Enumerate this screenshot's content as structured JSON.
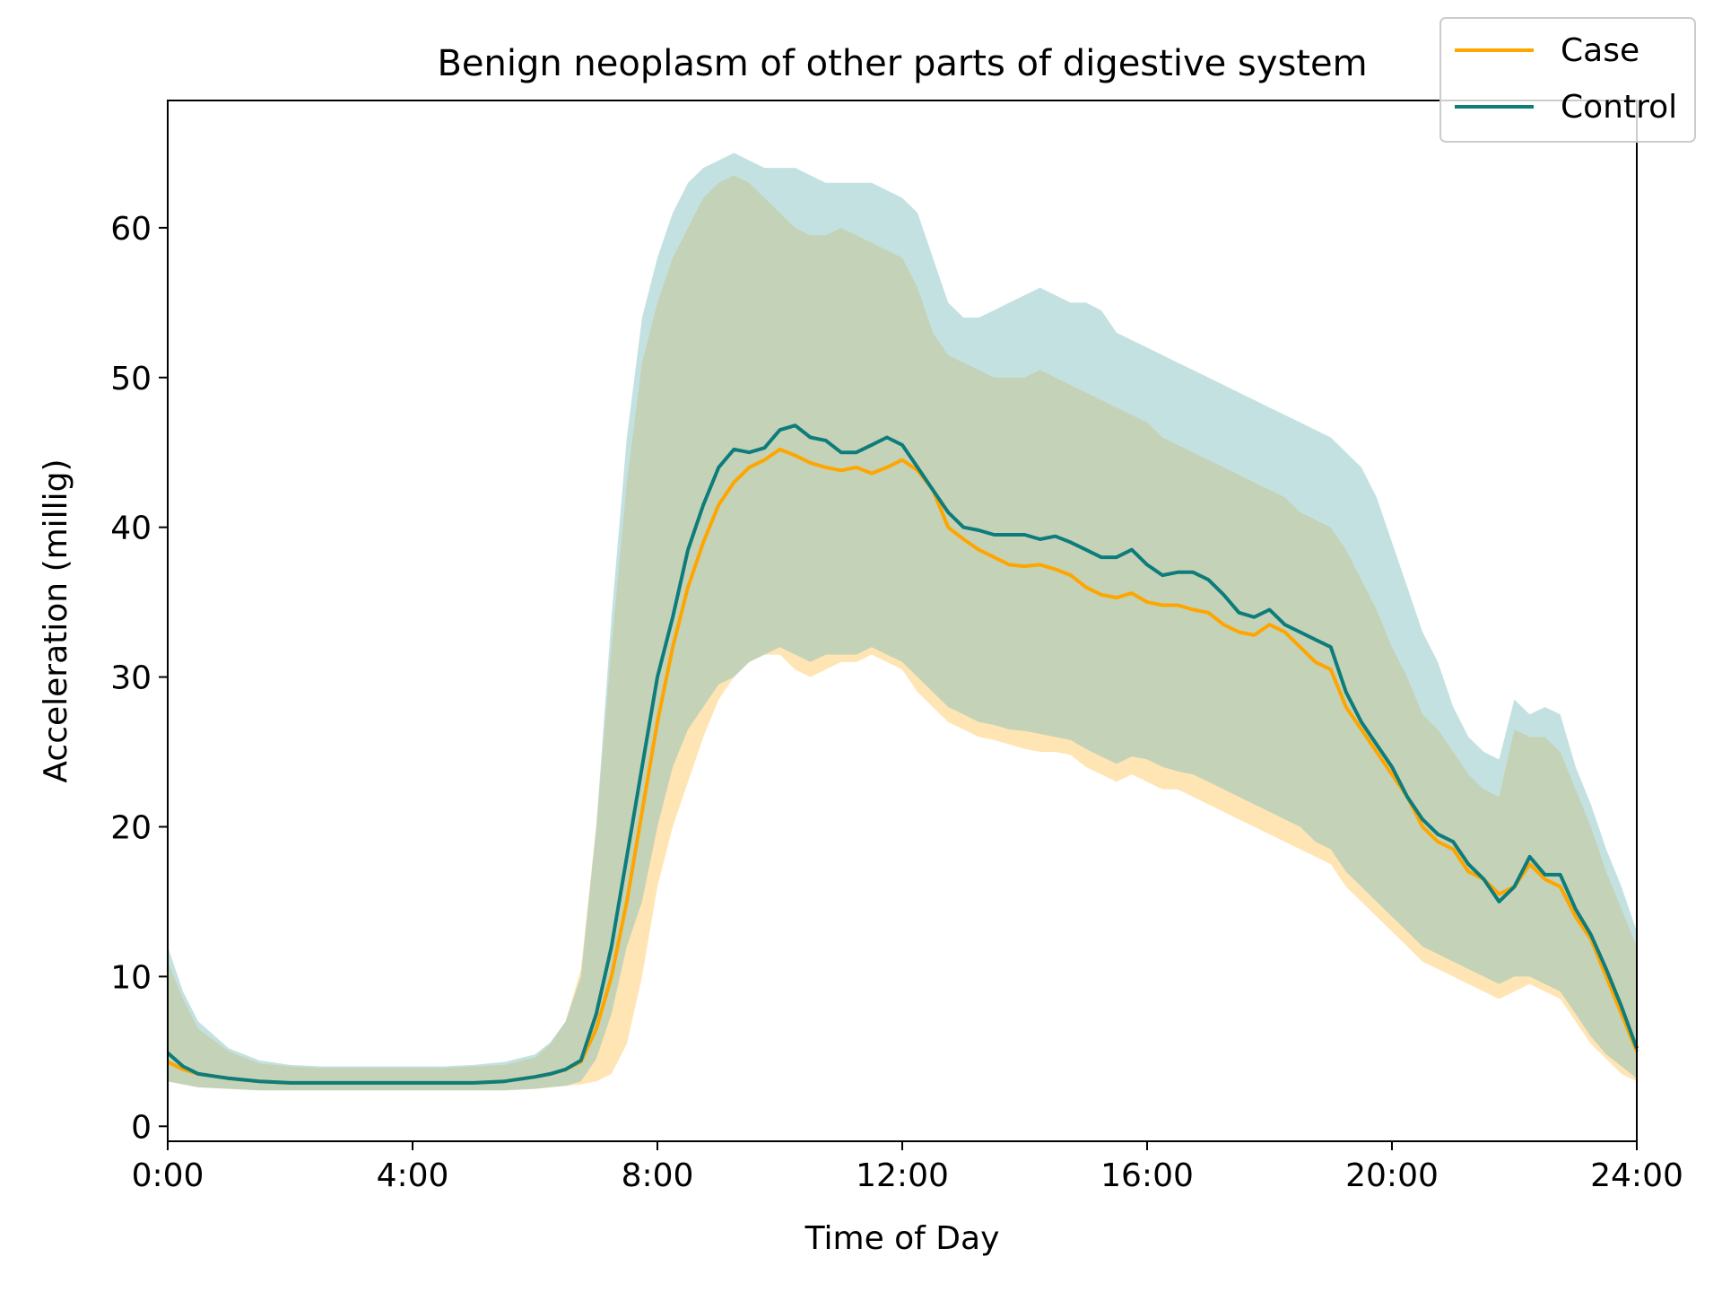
{
  "chart_data": {
    "type": "line",
    "title": "Benign neoplasm of other parts of digestive system",
    "xlabel": "Time of Day",
    "ylabel": "Acceleration (millig)",
    "xlim": [
      0,
      24
    ],
    "ylim": [
      -1,
      68.5
    ],
    "x_ticks": [
      0,
      4,
      8,
      12,
      16,
      20,
      24
    ],
    "x_tick_labels": [
      "0:00",
      "4:00",
      "8:00",
      "12:00",
      "16:00",
      "20:00",
      "24:00"
    ],
    "y_ticks": [
      0,
      10,
      20,
      30,
      40,
      50,
      60
    ],
    "y_tick_labels": [
      "0",
      "10",
      "20",
      "30",
      "40",
      "50",
      "60"
    ],
    "grid": false,
    "legend_position": "top-right",
    "x": [
      0,
      0.25,
      0.5,
      1,
      1.5,
      2,
      2.5,
      3,
      3.5,
      4,
      4.5,
      5,
      5.5,
      6,
      6.25,
      6.5,
      6.75,
      7,
      7.25,
      7.5,
      7.75,
      8,
      8.25,
      8.5,
      8.75,
      9,
      9.25,
      9.5,
      9.75,
      10,
      10.25,
      10.5,
      10.75,
      11,
      11.25,
      11.5,
      11.75,
      12,
      12.25,
      12.5,
      12.75,
      13,
      13.25,
      13.5,
      13.75,
      14,
      14.25,
      14.5,
      14.75,
      15,
      15.25,
      15.5,
      15.75,
      16,
      16.25,
      16.5,
      16.75,
      17,
      17.25,
      17.5,
      17.75,
      18,
      18.25,
      18.5,
      18.75,
      19,
      19.25,
      19.5,
      19.75,
      20,
      20.25,
      20.5,
      20.75,
      21,
      21.25,
      21.5,
      21.75,
      22,
      22.25,
      22.5,
      22.75,
      23,
      23.25,
      23.5,
      23.75,
      24
    ],
    "series": [
      {
        "name": "Case",
        "color": "#ffa500",
        "values": [
          4.3,
          3.8,
          3.5,
          3.2,
          3.0,
          2.9,
          2.9,
          2.9,
          2.9,
          2.9,
          2.9,
          2.9,
          3.0,
          3.3,
          3.5,
          3.8,
          4.3,
          6.5,
          10.0,
          15.0,
          21.0,
          27.0,
          32.0,
          36.0,
          39.0,
          41.5,
          43.0,
          44.0,
          44.5,
          45.2,
          44.8,
          44.3,
          44.0,
          43.8,
          44.0,
          43.6,
          44.0,
          44.5,
          43.8,
          42.5,
          40.0,
          39.2,
          38.5,
          38.0,
          37.5,
          37.4,
          37.5,
          37.2,
          36.8,
          36.0,
          35.5,
          35.3,
          35.6,
          35.0,
          34.8,
          34.8,
          34.5,
          34.3,
          33.5,
          33.0,
          32.8,
          33.5,
          33.0,
          32.0,
          31.0,
          30.5,
          28.0,
          26.5,
          25.0,
          23.5,
          22.0,
          20.0,
          19.0,
          18.5,
          17.0,
          16.5,
          15.5,
          16.0,
          17.5,
          16.5,
          16.0,
          14.0,
          12.5,
          10.0,
          7.5,
          5.0
        ],
        "upper": [
          11.0,
          8.5,
          6.5,
          5.0,
          4.2,
          4.0,
          3.9,
          3.9,
          3.9,
          3.9,
          3.9,
          4.0,
          4.1,
          4.6,
          5.5,
          7.0,
          10.5,
          20.0,
          32.0,
          43.0,
          51.0,
          55.0,
          58.0,
          60.0,
          62.0,
          63.0,
          63.5,
          63.0,
          62.0,
          61.0,
          60.0,
          59.5,
          59.5,
          60.0,
          59.5,
          59.0,
          58.5,
          58.0,
          56.0,
          53.0,
          51.5,
          51.0,
          50.5,
          50.0,
          50.0,
          50.0,
          50.5,
          50.0,
          49.5,
          49.0,
          48.5,
          48.0,
          47.5,
          47.0,
          46.0,
          45.5,
          45.0,
          44.5,
          44.0,
          43.5,
          43.0,
          42.5,
          42.0,
          41.0,
          40.5,
          40.0,
          38.5,
          36.5,
          34.5,
          32.0,
          30.0,
          27.5,
          26.5,
          25.0,
          23.5,
          22.5,
          22.0,
          26.5,
          26.0,
          26.0,
          25.0,
          22.5,
          20.0,
          17.0,
          14.5,
          12.0
        ],
        "lower": [
          3.0,
          2.8,
          2.6,
          2.5,
          2.4,
          2.4,
          2.4,
          2.4,
          2.4,
          2.4,
          2.4,
          2.4,
          2.4,
          2.5,
          2.6,
          2.7,
          2.8,
          3.0,
          3.5,
          5.5,
          10.0,
          16.0,
          20.0,
          23.0,
          26.0,
          28.5,
          30.0,
          31.0,
          31.5,
          31.5,
          30.5,
          30.0,
          30.5,
          31.0,
          31.0,
          31.5,
          31.0,
          30.5,
          29.0,
          28.0,
          27.0,
          26.5,
          26.0,
          25.8,
          25.5,
          25.2,
          25.0,
          25.0,
          24.8,
          24.0,
          23.5,
          23.0,
          23.5,
          23.0,
          22.5,
          22.5,
          22.0,
          21.5,
          21.0,
          20.5,
          20.0,
          19.5,
          19.0,
          18.5,
          18.0,
          17.5,
          16.0,
          15.0,
          14.0,
          13.0,
          12.0,
          11.0,
          10.5,
          10.0,
          9.5,
          9.0,
          8.5,
          9.0,
          9.5,
          9.0,
          8.5,
          7.0,
          5.5,
          4.5,
          3.5,
          3.0
        ]
      },
      {
        "name": "Control",
        "color": "#0e7c7b",
        "values": [
          4.9,
          4.0,
          3.5,
          3.2,
          3.0,
          2.9,
          2.9,
          2.9,
          2.9,
          2.9,
          2.9,
          2.9,
          3.0,
          3.3,
          3.5,
          3.8,
          4.4,
          7.5,
          12.0,
          18.0,
          24.0,
          30.0,
          34.0,
          38.5,
          41.5,
          44.0,
          45.2,
          45.0,
          45.3,
          46.5,
          46.8,
          46.0,
          45.8,
          45.0,
          45.0,
          45.5,
          46.0,
          45.5,
          44.0,
          42.5,
          41.0,
          40.0,
          39.8,
          39.5,
          39.5,
          39.5,
          39.2,
          39.4,
          39.0,
          38.5,
          38.0,
          38.0,
          38.5,
          37.5,
          36.8,
          37.0,
          37.0,
          36.5,
          35.5,
          34.3,
          34.0,
          34.5,
          33.5,
          33.0,
          32.5,
          32.0,
          29.0,
          27.0,
          25.5,
          24.0,
          22.0,
          20.5,
          19.5,
          19.0,
          17.5,
          16.5,
          15.0,
          16.0,
          18.0,
          16.8,
          16.8,
          14.5,
          12.8,
          10.5,
          8.0,
          5.2
        ],
        "upper": [
          12.0,
          9.0,
          7.0,
          5.2,
          4.4,
          4.1,
          4.0,
          4.0,
          4.0,
          4.0,
          4.0,
          4.1,
          4.3,
          4.8,
          5.6,
          7.0,
          10.0,
          20.0,
          34.0,
          46.0,
          54.0,
          58.0,
          61.0,
          63.0,
          64.0,
          64.5,
          65.0,
          64.5,
          64.0,
          64.0,
          64.0,
          63.5,
          63.0,
          63.0,
          63.0,
          63.0,
          62.5,
          62.0,
          61.0,
          58.0,
          55.0,
          54.0,
          54.0,
          54.5,
          55.0,
          55.5,
          56.0,
          55.5,
          55.0,
          55.0,
          54.5,
          53.0,
          52.5,
          52.0,
          51.5,
          51.0,
          50.5,
          50.0,
          49.5,
          49.0,
          48.5,
          48.0,
          47.5,
          47.0,
          46.5,
          46.0,
          45.0,
          44.0,
          42.0,
          39.0,
          36.0,
          33.0,
          31.0,
          28.0,
          26.0,
          25.0,
          24.5,
          28.5,
          27.5,
          28.0,
          27.5,
          24.0,
          21.5,
          18.5,
          16.0,
          13.0
        ],
        "lower": [
          3.0,
          2.8,
          2.6,
          2.5,
          2.4,
          2.4,
          2.4,
          2.4,
          2.4,
          2.4,
          2.4,
          2.4,
          2.4,
          2.5,
          2.6,
          2.7,
          3.0,
          4.5,
          7.5,
          12.0,
          15.0,
          20.0,
          24.0,
          26.5,
          28.0,
          29.5,
          30.0,
          31.0,
          31.5,
          32.0,
          31.5,
          31.0,
          31.5,
          31.5,
          31.5,
          32.0,
          31.5,
          31.0,
          30.0,
          29.0,
          28.0,
          27.5,
          27.0,
          26.8,
          26.5,
          26.4,
          26.2,
          26.0,
          25.8,
          25.2,
          24.7,
          24.2,
          24.7,
          24.5,
          24.0,
          23.7,
          23.5,
          23.0,
          22.5,
          22.0,
          21.5,
          21.0,
          20.5,
          20.0,
          19.0,
          18.5,
          17.0,
          16.0,
          15.0,
          14.0,
          13.0,
          12.0,
          11.5,
          11.0,
          10.5,
          10.0,
          9.5,
          10.0,
          10.0,
          9.5,
          9.0,
          7.5,
          6.0,
          4.8,
          4.0,
          3.2
        ]
      }
    ]
  }
}
